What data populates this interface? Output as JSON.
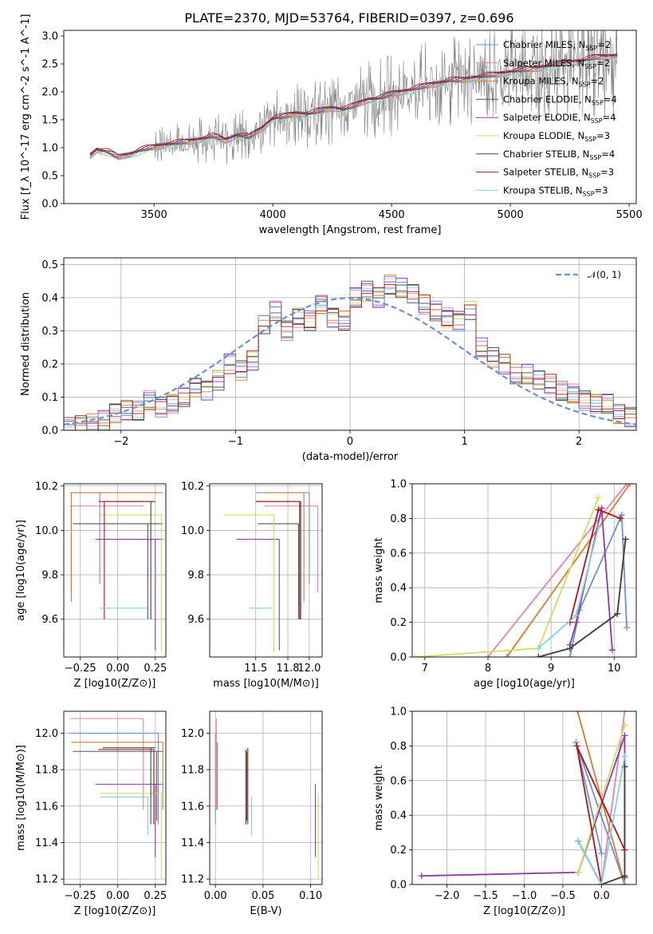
{
  "page_title": "PLATE=2370, MJD=53764, FIBERID=0397, z=0.696",
  "colors": {
    "Chabrier MILES": "#6a8fd8",
    "Salpeter MILES": "#e87fb8",
    "Kroupa MILES": "#d97a2e",
    "Chabrier ELODIE": "#555555",
    "Salpeter ELODIE": "#8b3aa8",
    "Kroupa ELODIE": "#c9e060",
    "Chabrier STELIB": "#444444",
    "Salpeter STELIB": "#b01515",
    "Kroupa STELIB": "#7fd3dc",
    "normal": "#6a8fd8",
    "data": "#808080"
  },
  "chart_data": [
    {
      "id": "spectrum",
      "type": "line",
      "title": "PLATE=2370, MJD=53764, FIBERID=0397, z=0.696",
      "xlabel": "wavelength [Angstrom, rest frame]",
      "ylabel": "Flux [f_λ 10^-17 erg cm^-2 s^-1 A^-1]",
      "xlim": [
        3120,
        5530
      ],
      "ylim": [
        0,
        3.1
      ],
      "xticks": [
        3500,
        4000,
        4500,
        5000,
        5500
      ],
      "yticks": [
        0.0,
        0.5,
        1.0,
        1.5,
        2.0,
        2.5,
        3.0
      ],
      "grid": false,
      "legend_position": "top-right",
      "legend": [
        {
          "model": "Chabrier MILES",
          "n": "2"
        },
        {
          "model": "Salpeter MILES",
          "n": "2"
        },
        {
          "model": "Kroupa MILES",
          "n": "2"
        },
        {
          "model": "Chabrier ELODIE",
          "n": "4"
        },
        {
          "model": "Salpeter ELODIE",
          "n": "4"
        },
        {
          "model": "Kroupa ELODIE",
          "n": "3"
        },
        {
          "model": "Chabrier STELIB",
          "n": "4"
        },
        {
          "model": "Salpeter STELIB",
          "n": "3"
        },
        {
          "model": "Kroupa STELIB",
          "n": "3"
        }
      ],
      "legend_n_label": "N_SSP",
      "model_continuum": {
        "x": [
          3230,
          3260,
          3300,
          3350,
          3400,
          3450,
          3500,
          3550,
          3600,
          3650,
          3700,
          3750,
          3800,
          3850,
          3900,
          3950,
          4000,
          4050,
          4100,
          4150,
          4200,
          4250,
          4300,
          4350,
          4400,
          4450,
          4500,
          4550,
          4600,
          4650,
          4700,
          4750,
          4800,
          4850,
          4900,
          4950,
          5000,
          5050,
          5100,
          5150,
          5200,
          5250,
          5300,
          5350,
          5400,
          5450
        ],
        "y": [
          0.85,
          0.96,
          0.93,
          0.82,
          0.88,
          0.96,
          1.0,
          1.05,
          1.08,
          1.1,
          1.15,
          1.2,
          1.12,
          1.22,
          1.18,
          1.32,
          1.52,
          1.55,
          1.6,
          1.6,
          1.65,
          1.7,
          1.68,
          1.75,
          1.85,
          1.88,
          1.95,
          2.0,
          2.05,
          2.1,
          2.15,
          2.2,
          2.2,
          2.25,
          2.28,
          2.3,
          2.35,
          2.38,
          2.4,
          2.45,
          2.48,
          2.52,
          2.55,
          2.6,
          2.62,
          2.65
        ]
      }
    },
    {
      "id": "residuals",
      "type": "line",
      "xlabel": "(data-model)/error",
      "ylabel": "Normed distribution",
      "xlim": [
        -2.5,
        2.5
      ],
      "ylim": [
        0,
        0.52
      ],
      "xticks": [
        -2,
        -1,
        0,
        1,
        2
      ],
      "xtick_labels": [
        "−2",
        "−1",
        "0",
        "1",
        "2"
      ],
      "yticks": [
        0.0,
        0.1,
        0.2,
        0.3,
        0.4,
        0.5
      ],
      "grid": true,
      "legend_position": "top-right",
      "legend": [
        "𝒩(0, 1)"
      ],
      "bin_edges_start": -2.5,
      "bin_width": 0.1,
      "hist_base": [
        0.01,
        0.015,
        0.02,
        0.03,
        0.05,
        0.06,
        0.06,
        0.09,
        0.07,
        0.08,
        0.1,
        0.13,
        0.12,
        0.15,
        0.2,
        0.18,
        0.21,
        0.32,
        0.36,
        0.3,
        0.34,
        0.33,
        0.38,
        0.34,
        0.33,
        0.4,
        0.42,
        0.4,
        0.44,
        0.43,
        0.41,
        0.38,
        0.36,
        0.34,
        0.33,
        0.36,
        0.25,
        0.22,
        0.2,
        0.17,
        0.17,
        0.15,
        0.14,
        0.12,
        0.11,
        0.09,
        0.08,
        0.08,
        0.05,
        0.04
      ]
    },
    {
      "id": "age-Z",
      "type": "scatter",
      "xlabel": "Z [log10(Z/Z⊙)]",
      "ylabel": "age [log10(age/yr)]",
      "xlim": [
        -0.36,
        0.32
      ],
      "ylim": [
        9.43,
        10.21
      ],
      "xticks": [
        -0.25,
        0.0,
        0.25
      ],
      "xtick_labels": [
        "−0.25",
        "0.00",
        "0.25"
      ],
      "yticks": [
        9.6,
        9.8,
        10.0,
        10.2
      ],
      "grid": true
    },
    {
      "id": "age-mass",
      "type": "scatter",
      "xlabel": "mass [log10(M/M⊙)]",
      "ylabel": "",
      "xlim": [
        11.07,
        12.12
      ],
      "ylim": [
        9.43,
        10.21
      ],
      "xticks": [
        11.5,
        11.8,
        12.0
      ],
      "xtick_labels": [
        "11.5",
        "11.8",
        "12.0"
      ],
      "yticks": [
        9.6,
        9.8,
        10.0,
        10.2
      ],
      "grid": true
    },
    {
      "id": "weight-age",
      "type": "line",
      "xlabel": "age [log10(age/yr)]",
      "ylabel": "mass weight",
      "xlim": [
        6.8,
        10.35
      ],
      "ylim": [
        0,
        1.0
      ],
      "xticks": [
        7,
        8,
        9,
        10
      ],
      "yticks": [
        0.0,
        0.2,
        0.4,
        0.6,
        0.8,
        1.0
      ],
      "grid": true
    },
    {
      "id": "mass-Z",
      "type": "scatter",
      "xlabel": "Z [log10(Z/Z⊙)]",
      "ylabel": "mass [log10(M/M⊙)]",
      "xlim": [
        -0.36,
        0.32
      ],
      "ylim": [
        11.17,
        12.12
      ],
      "xticks": [
        -0.25,
        0.0,
        0.25
      ],
      "xtick_labels": [
        "−0.25",
        "0.00",
        "0.25"
      ],
      "yticks": [
        11.2,
        11.4,
        11.6,
        11.8,
        12.0
      ],
      "grid": true
    },
    {
      "id": "mass-ebv",
      "type": "scatter",
      "xlabel": "E(B-V)",
      "ylabel": "",
      "xlim": [
        -0.006,
        0.112
      ],
      "ylim": [
        11.17,
        12.12
      ],
      "xticks": [
        0.0,
        0.05,
        0.1
      ],
      "xtick_labels": [
        "0.00",
        "0.05",
        "0.10"
      ],
      "yticks": [
        11.2,
        11.4,
        11.6,
        11.8,
        12.0
      ],
      "grid": true
    },
    {
      "id": "weight-Z",
      "type": "line",
      "xlabel": "Z [log10(Z/Z⊙)]",
      "ylabel": "mass weight",
      "xlim": [
        -2.45,
        0.45
      ],
      "ylim": [
        0,
        1.0
      ],
      "xticks": [
        -2.0,
        -1.5,
        -1.0,
        -0.5,
        0.0
      ],
      "xtick_labels": [
        "−2.0",
        "−1.5",
        "−1.0",
        "−0.5",
        "0.0"
      ],
      "yticks": [
        0.0,
        0.2,
        0.4,
        0.6,
        0.8,
        1.0
      ],
      "grid": true
    }
  ],
  "models": [
    {
      "name": "Chabrier MILES",
      "Z": [
        -0.12,
        0.27
      ],
      "age": [
        9.76,
        10.17
      ],
      "mass": [
        11.6,
        11.94
      ],
      "ebv": 0.0,
      "Zrange": [
        -0.32,
        0.27
      ],
      "ageLo": 9.76,
      "ageHi": 10.17,
      "massLo": 11.5,
      "massHi": 12.0,
      "wa": {
        "age": [
          10.2,
          10.12,
          9.45,
          9.3
        ],
        "w": [
          0.17,
          0.82,
          0.27,
          0.0
        ]
      },
      "wz": {
        "z": [
          0.3,
          -0.33,
          0.0
        ],
        "w": [
          0.0,
          0.82,
          0.18
        ]
      }
    },
    {
      "name": "Salpeter MILES",
      "Z": [
        -0.31,
        0.17
      ],
      "age": [
        9.72,
        10.11
      ],
      "mass": [
        11.58,
        11.98
      ],
      "ebv": 0.001,
      "Zrange": [
        -0.32,
        0.17
      ],
      "ageLo": 9.72,
      "ageHi": 10.11,
      "massLo": 11.58,
      "massHi": 12.08,
      "wa": {
        "age": [
          8.0,
          10.2
        ],
        "w": [
          0.0,
          1.0
        ]
      },
      "wz": {
        "z": [
          0.3,
          0.0
        ],
        "w": [
          1.0,
          0.0
        ]
      }
    },
    {
      "name": "Kroupa MILES",
      "Z": [
        -0.31,
        0.3
      ],
      "age": [
        9.68,
        10.17
      ],
      "mass": [
        11.58,
        11.89
      ],
      "ebv": 0.002,
      "Zrange": [
        -0.31,
        0.3
      ],
      "ageLo": 9.68,
      "ageHi": 10.17,
      "massLo": 11.58,
      "massHi": 11.95,
      "wa": {
        "age": [
          8.3,
          10.25
        ],
        "w": [
          0.0,
          1.0
        ]
      },
      "wz": {
        "z": [
          0.3,
          -0.31
        ],
        "w": [
          0.0,
          1.0
        ]
      }
    },
    {
      "name": "Chabrier ELODIE",
      "Z": [
        0.2,
        0.26
      ],
      "age": [
        9.62,
        9.75
      ],
      "mass": [
        11.52,
        11.75
      ],
      "ebv": 0.033,
      "Zrange": [
        -0.3,
        0.3
      ],
      "ageLo": 9.6,
      "ageHi": 10.03,
      "massLo": 11.52,
      "massHi": 11.9,
      "wa": {
        "age": [
          8.8,
          9.3,
          10.05,
          10.18
        ],
        "w": [
          0.0,
          0.05,
          0.25,
          0.68
        ]
      },
      "wz": {
        "z": [
          -0.3,
          0.0,
          0.3,
          0.3
        ],
        "w": [
          0.25,
          0.0,
          0.05,
          0.68
        ]
      }
    },
    {
      "name": "Salpeter ELODIE",
      "Z": [
        0.25,
        0.25
      ],
      "age": [
        9.46,
        9.75
      ],
      "mass": [
        11.32,
        11.56
      ],
      "ebv": 0.105,
      "Zrange": [
        -0.15,
        0.3
      ],
      "ageLo": 9.46,
      "ageHi": 9.96,
      "massLo": 11.32,
      "massHi": 11.72,
      "wa": {
        "age": [
          9.3,
          9.4,
          9.8,
          9.97
        ],
        "w": [
          0.07,
          0.2,
          0.86,
          0.04
        ]
      },
      "wz": {
        "z": [
          -2.33,
          -0.3,
          0.3,
          0.3
        ],
        "w": [
          0.05,
          0.07,
          0.86,
          0.04
        ]
      }
    },
    {
      "name": "Kroupa ELODIE",
      "Z": [
        0.29,
        0.29
      ],
      "age": [
        9.45,
        9.75
      ],
      "mass": [
        11.2,
        11.44
      ],
      "ebv": 0.108,
      "Zrange": [
        -0.12,
        0.3
      ],
      "ageLo": 9.45,
      "ageHi": 10.07,
      "massLo": 11.2,
      "massHi": 11.67,
      "wa": {
        "age": [
          6.85,
          8.8,
          9.75
        ],
        "w": [
          0.0,
          0.05,
          0.92
        ]
      },
      "wz": {
        "z": [
          -0.3,
          0.3
        ],
        "w": [
          0.07,
          0.92
        ]
      }
    },
    {
      "name": "Chabrier STELIB",
      "Z": [
        0.22,
        0.22
      ],
      "age": [
        9.6,
        10.13
      ],
      "mass": [
        11.6,
        11.9
      ],
      "ebv": 0.034,
      "Zrange": [
        -0.1,
        0.25
      ],
      "ageLo": 9.6,
      "ageHi": 10.13,
      "massLo": 11.5,
      "massHi": 11.92,
      "wa": {
        "age": [
          8.8,
          9.3,
          10.05,
          10.18
        ],
        "w": [
          0.0,
          0.05,
          0.25,
          0.68
        ]
      },
      "wz": {
        "z": [
          -0.3,
          0.0,
          0.3,
          0.3
        ],
        "w": [
          0.25,
          0.0,
          0.05,
          0.68
        ]
      }
    },
    {
      "name": "Salpeter STELIB",
      "Z": [
        -0.09,
        0.24
      ],
      "age": [
        9.6,
        10.03
      ],
      "mass": [
        11.5,
        11.79
      ],
      "ebv": 0.032,
      "Zrange": [
        -0.13,
        0.24
      ],
      "ageLo": 9.6,
      "ageHi": 10.13,
      "massLo": 11.5,
      "massHi": 11.91,
      "wa": {
        "age": [
          9.3,
          9.75,
          10.1
        ],
        "w": [
          0.2,
          0.85,
          0.8
        ]
      },
      "wz": {
        "z": [
          0.3,
          -0.32,
          0.0
        ],
        "w": [
          0.2,
          0.8,
          0.0
        ]
      }
    },
    {
      "name": "Kroupa STELIB",
      "Z": [
        -0.12,
        0.2
      ],
      "age": [
        9.65,
        9.65
      ],
      "mass": [
        11.44,
        11.55
      ],
      "ebv": 0.038,
      "Zrange": [
        -0.12,
        0.2
      ],
      "ageLo": 9.65,
      "ageHi": 9.65,
      "massLo": 11.44,
      "massHi": 11.65,
      "wa": {
        "age": [
          8.8,
          9.4,
          9.75
        ],
        "w": [
          0.05,
          0.24,
          0.75
        ]
      },
      "wz": {
        "z": [
          -0.3,
          0.0,
          0.3
        ],
        "w": [
          0.25,
          0.0,
          0.74
        ]
      }
    }
  ]
}
